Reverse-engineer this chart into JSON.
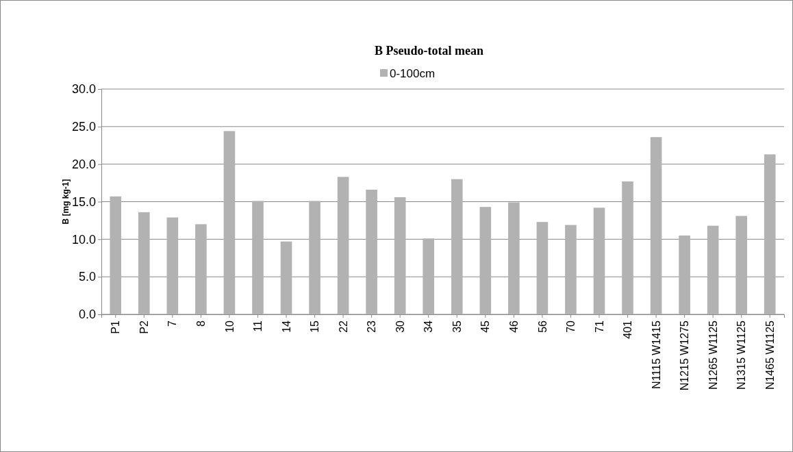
{
  "chart_data": {
    "type": "bar",
    "title": "B Pseudo-total mean",
    "ylabel": "B [mg kg-1]",
    "categories": [
      "P1",
      "P2",
      "7",
      "8",
      "10",
      "11",
      "14",
      "15",
      "22",
      "23",
      "30",
      "34",
      "35",
      "45",
      "46",
      "56",
      "70",
      "71",
      "401",
      "N1115 W1415",
      "N1215 W1275",
      "N1265 W1125",
      "N1315 W1125",
      "N1465 W1125"
    ],
    "series": [
      {
        "name": "0-100cm",
        "color": "#b2b2b2",
        "values": [
          15.7,
          13.6,
          12.9,
          12.0,
          24.4,
          15.1,
          9.7,
          15.1,
          18.3,
          16.6,
          15.6,
          10.1,
          18.0,
          14.3,
          14.9,
          12.3,
          11.9,
          14.2,
          17.7,
          23.6,
          10.5,
          11.8,
          13.1,
          21.3
        ]
      }
    ],
    "ylim": [
      0,
      30
    ],
    "yticks": [
      {
        "value": 0,
        "label": "0.0"
      },
      {
        "value": 5,
        "label": "5.0"
      },
      {
        "value": 10,
        "label": "10.0"
      },
      {
        "value": 15,
        "label": "15.0"
      },
      {
        "value": 20,
        "label": "20.0"
      },
      {
        "value": 25,
        "label": "25.0"
      },
      {
        "value": 30,
        "label": "30.0"
      }
    ],
    "grid": "y",
    "legend": "top"
  }
}
